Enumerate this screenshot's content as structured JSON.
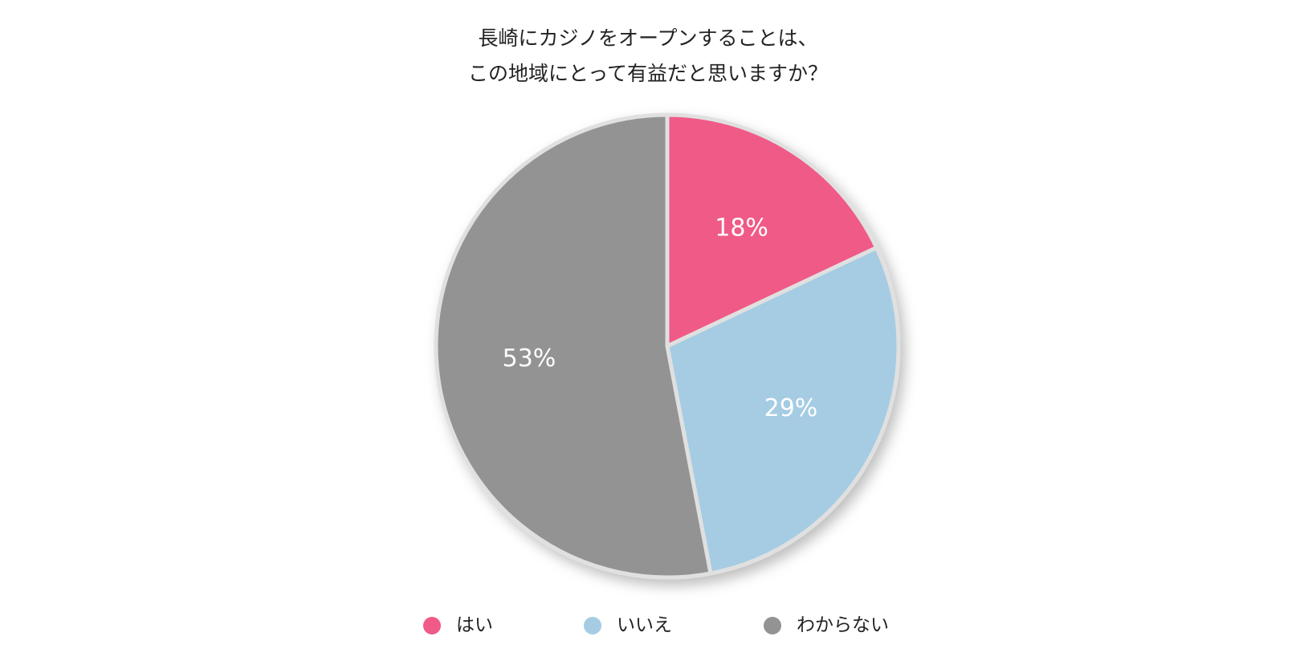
{
  "chart_data": {
    "type": "pie",
    "title": [
      "長崎にカジノをオープンすることは、",
      "この地域にとって有益だと思いますか？"
    ],
    "categories": [
      "はい",
      "いいえ",
      "わからない"
    ],
    "values": [
      18,
      29,
      53
    ],
    "value_labels": [
      "18%",
      "29%",
      "53%"
    ],
    "colors": [
      "#f05a87",
      "#a5cce3",
      "#939393"
    ],
    "legend": "bottom"
  }
}
